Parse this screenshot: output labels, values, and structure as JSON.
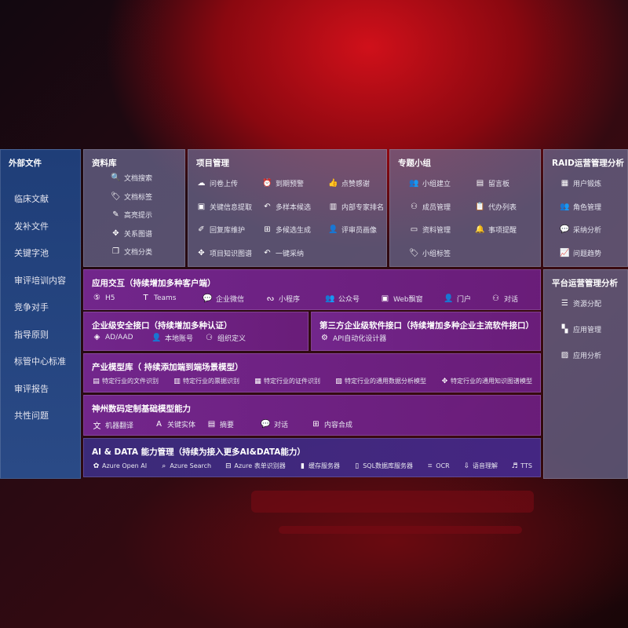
{
  "sidebar": {
    "title": "外部文件",
    "items": [
      "临床文献",
      "发补文件",
      "关键字池",
      "审评培训内容",
      "竞争对手",
      "指导原则",
      "标管中心标准",
      "审评报告",
      "共性问题"
    ]
  },
  "library": {
    "title": "资料库",
    "items": [
      {
        "icon": "document-search",
        "label": "文档搜索"
      },
      {
        "icon": "tag",
        "label": "文档标签"
      },
      {
        "icon": "highlight-pen",
        "label": "高亮提示"
      },
      {
        "icon": "graph",
        "label": "关系图谱"
      },
      {
        "icon": "document-stack",
        "label": "文档分类"
      }
    ]
  },
  "project": {
    "title": "项目管理",
    "items": [
      {
        "icon": "cloud-upload",
        "label": "问卷上传"
      },
      {
        "icon": "alarm",
        "label": "到期预警"
      },
      {
        "icon": "thumbs-up",
        "label": "点赞感谢"
      },
      {
        "icon": "window",
        "label": "关键信息提取"
      },
      {
        "icon": "reply",
        "label": "多样本候选"
      },
      {
        "icon": "ranking",
        "label": "内部专家排名"
      },
      {
        "icon": "pen",
        "label": "回复库维护"
      },
      {
        "icon": "puzzle",
        "label": "多候选生成"
      },
      {
        "icon": "user",
        "label": "评审员画像"
      },
      {
        "icon": "graph",
        "label": "项目知识图谱"
      },
      {
        "icon": "reply",
        "label": "一键采纳"
      }
    ]
  },
  "group": {
    "title": "专题小组",
    "items": [
      {
        "icon": "users",
        "label": "小组建立"
      },
      {
        "icon": "bbs",
        "label": "留言板"
      },
      {
        "icon": "user-add",
        "label": "成员管理"
      },
      {
        "icon": "clipboard",
        "label": "代办列表"
      },
      {
        "icon": "folder",
        "label": "资料管理"
      },
      {
        "icon": "bell",
        "label": "事项提醒"
      },
      {
        "icon": "tag",
        "label": "小组标签"
      }
    ]
  },
  "raid": {
    "title": "RAID运营管理分析",
    "items": [
      {
        "icon": "id-card",
        "label": "用户锻炼"
      },
      {
        "icon": "users",
        "label": "角色管理"
      },
      {
        "icon": "qa",
        "label": "采纳分析"
      },
      {
        "icon": "trend",
        "label": "问题趋势"
      }
    ]
  },
  "platform": {
    "title": "平台运营管理分析",
    "items": [
      {
        "icon": "list",
        "label": "资源分配"
      },
      {
        "icon": "apps",
        "label": "应用管理"
      },
      {
        "icon": "chart",
        "label": "应用分析"
      }
    ]
  },
  "app": {
    "title": "应用交互（持续增加多种客户端）",
    "items": [
      {
        "icon": "html5",
        "label": "H5"
      },
      {
        "icon": "teams",
        "label": "Teams"
      },
      {
        "icon": "chat",
        "label": "企业微信"
      },
      {
        "icon": "mini-program",
        "label": "小程序"
      },
      {
        "icon": "users",
        "label": "公众号"
      },
      {
        "icon": "window",
        "label": "Web飘窗"
      },
      {
        "icon": "user-desk",
        "label": "门户"
      },
      {
        "icon": "dialog",
        "label": "对话"
      }
    ]
  },
  "security": {
    "title": "企业级安全接口（持续增加多种认证）",
    "items": [
      {
        "icon": "diamond",
        "label": "AD/AAD"
      },
      {
        "icon": "user-lock",
        "label": "本地账号"
      },
      {
        "icon": "org",
        "label": "组织定义"
      }
    ]
  },
  "third": {
    "title": "第三方企业级软件接口（持续增加多种企业主流软件接口）",
    "items": [
      {
        "icon": "gear",
        "label": "API自动化设计器"
      }
    ]
  },
  "industry": {
    "title": "产业模型库（ 持续添加端到端场景模型）",
    "items": [
      {
        "icon": "document",
        "label": "特定行业的文件识别"
      },
      {
        "icon": "receipt",
        "label": "特定行业的票据识别"
      },
      {
        "icon": "id-card",
        "label": "特定行业的证件识别"
      },
      {
        "icon": "chart",
        "label": "特定行业的通用数据分析模型"
      },
      {
        "icon": "graph",
        "label": "特定行业的通用知识图谱模型"
      }
    ]
  },
  "base": {
    "title": "神州数码定制基础模型能力",
    "items": [
      {
        "icon": "translate",
        "label": "机器翻译"
      },
      {
        "icon": "badge-a",
        "label": "关键实体"
      },
      {
        "icon": "document",
        "label": "摘要"
      },
      {
        "icon": "chat",
        "label": "对话"
      },
      {
        "icon": "puzzle",
        "label": "内容合成"
      }
    ]
  },
  "ai": {
    "title": "AI & DATA 能力管理（持续为接入更多AI&DATA能力）",
    "items": [
      {
        "icon": "openai",
        "label": "Azure Open AI"
      },
      {
        "icon": "search-doc",
        "label": "Azure Search"
      },
      {
        "icon": "form",
        "label": "Azure 表单识别器"
      },
      {
        "icon": "cache",
        "label": "缓存服务器"
      },
      {
        "icon": "sql",
        "label": "SQL数据库服务器"
      },
      {
        "icon": "ocr",
        "label": "OCR"
      },
      {
        "icon": "speech",
        "label": "语音理解"
      },
      {
        "icon": "tts",
        "label": "TTS"
      }
    ]
  }
}
